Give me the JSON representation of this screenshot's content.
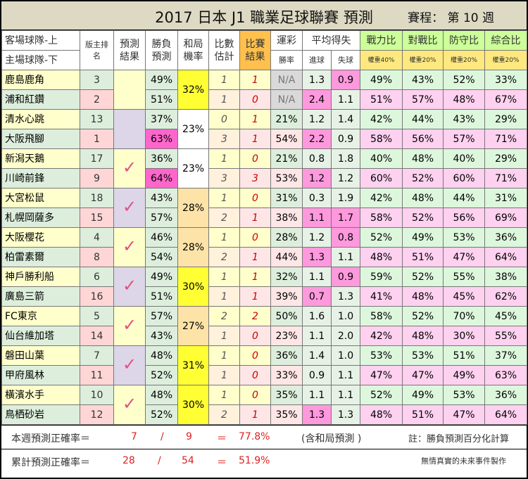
{
  "title": "2017 日本 J1 職業足球聯賽 預測",
  "schedule": "賽程： 第 10 週",
  "headers": {
    "team_top": "客場球隊-上",
    "team_bottom": "主場球隊-下",
    "rank": "版主排名",
    "pred": "預測結果",
    "win": "勝負預測",
    "draw": "和局機率",
    "est": "比數估計",
    "result": "比賽結果",
    "lottery": "運彩",
    "lottery_sub": "勝率",
    "avg": "平均得失",
    "gf": "進球",
    "ga": "失球",
    "power": "戰力比",
    "power_w": "權重40%",
    "vs": "對戰比",
    "vs_w": "權重20%",
    "def": "防守比",
    "def_w": "權重20%",
    "total": "綜合比",
    "total_w": "權重20%"
  },
  "matches": [
    {
      "pred": "",
      "draw": "32%",
      "draw_color": "y",
      "pred_color": "light",
      "away": {
        "team": "鹿島鹿角",
        "rank": "3",
        "win": "49%",
        "est": "1",
        "res": "1",
        "lot": "N/A",
        "gf": "1.3",
        "ga": "0.9",
        "pw": "49%",
        "vs": "43%",
        "df": "52%",
        "tot": "33%"
      },
      "home": {
        "team": "浦和紅鑽",
        "rank": "2",
        "win": "51%",
        "est": "1",
        "res": "0",
        "lot": "N/A",
        "gf": "2.4",
        "ga": "1.1",
        "pw": "51%",
        "vs": "57%",
        "df": "48%",
        "tot": "67%"
      }
    },
    {
      "pred": "",
      "draw": "23%",
      "draw_color": "w",
      "pred_color": "mauve",
      "away": {
        "team": "清水心跳",
        "rank": "13",
        "win": "37%",
        "est": "0",
        "res": "1",
        "lot": "21%",
        "gf": "1.2",
        "ga": "1.4",
        "pw": "42%",
        "vs": "44%",
        "df": "43%",
        "tot": "29%"
      },
      "home": {
        "team": "大阪飛腳",
        "rank": "1",
        "win": "63%",
        "est": "3",
        "res": "1",
        "lot": "54%",
        "gf": "2.2",
        "ga": "0.9",
        "pw": "58%",
        "vs": "56%",
        "df": "57%",
        "tot": "71%"
      }
    },
    {
      "pred": "✓",
      "draw": "23%",
      "draw_color": "w",
      "pred_color": "light",
      "away": {
        "team": "新潟天鵝",
        "rank": "17",
        "win": "36%",
        "est": "1",
        "res": "0",
        "lot": "21%",
        "gf": "0.8",
        "ga": "1.8",
        "pw": "40%",
        "vs": "48%",
        "df": "40%",
        "tot": "29%"
      },
      "home": {
        "team": "川崎前鋒",
        "rank": "9",
        "win": "64%",
        "est": "3",
        "res": "3",
        "lot": "53%",
        "gf": "1.2",
        "ga": "1.2",
        "pw": "60%",
        "vs": "52%",
        "df": "60%",
        "tot": "71%"
      }
    },
    {
      "pred": "✓",
      "draw": "28%",
      "draw_color": "o",
      "pred_color": "mauve",
      "away": {
        "team": "大宮松鼠",
        "rank": "18",
        "win": "43%",
        "est": "1",
        "res": "0",
        "lot": "31%",
        "gf": "0.3",
        "ga": "1.9",
        "pw": "42%",
        "vs": "48%",
        "df": "44%",
        "tot": "31%"
      },
      "home": {
        "team": "札幌岡薩多",
        "rank": "15",
        "win": "57%",
        "est": "2",
        "res": "1",
        "lot": "38%",
        "gf": "1.1",
        "ga": "1.7",
        "pw": "58%",
        "vs": "52%",
        "df": "56%",
        "tot": "69%"
      }
    },
    {
      "pred": "✓",
      "draw": "28%",
      "draw_color": "o",
      "pred_color": "light",
      "away": {
        "team": "大阪櫻花",
        "rank": "4",
        "win": "46%",
        "est": "1",
        "res": "0",
        "lot": "28%",
        "gf": "1.2",
        "ga": "0.8",
        "pw": "52%",
        "vs": "49%",
        "df": "53%",
        "tot": "36%"
      },
      "home": {
        "team": "柏雷素爾",
        "rank": "8",
        "win": "54%",
        "est": "2",
        "res": "1",
        "lot": "44%",
        "gf": "1.3",
        "ga": "1.1",
        "pw": "48%",
        "vs": "51%",
        "df": "47%",
        "tot": "64%"
      }
    },
    {
      "pred": "✓",
      "draw": "30%",
      "draw_color": "y",
      "pred_color": "mauve",
      "away": {
        "team": "神戶勝利船",
        "rank": "6",
        "win": "49%",
        "est": "1",
        "res": "1",
        "lot": "32%",
        "gf": "1.1",
        "ga": "0.9",
        "pw": "59%",
        "vs": "52%",
        "df": "55%",
        "tot": "38%"
      },
      "home": {
        "team": "廣島三箭",
        "rank": "16",
        "win": "51%",
        "est": "1",
        "res": "1",
        "lot": "39%",
        "gf": "0.7",
        "ga": "1.3",
        "pw": "41%",
        "vs": "48%",
        "df": "45%",
        "tot": "62%"
      }
    },
    {
      "pred": "✓",
      "draw": "27%",
      "draw_color": "o",
      "pred_color": "light",
      "away": {
        "team": "FC東京",
        "rank": "5",
        "win": "57%",
        "est": "2",
        "res": "2",
        "lot": "50%",
        "gf": "1.6",
        "ga": "1.0",
        "pw": "58%",
        "vs": "52%",
        "df": "70%",
        "tot": "45%"
      },
      "home": {
        "team": "仙台維加塔",
        "rank": "14",
        "win": "43%",
        "est": "1",
        "res": "0",
        "lot": "23%",
        "gf": "1.1",
        "ga": "2.0",
        "pw": "42%",
        "vs": "48%",
        "df": "30%",
        "tot": "55%"
      }
    },
    {
      "pred": "✓",
      "draw": "31%",
      "draw_color": "y",
      "pred_color": "mauve",
      "away": {
        "team": "磐田山葉",
        "rank": "7",
        "win": "48%",
        "est": "1",
        "res": "0",
        "lot": "36%",
        "gf": "1.4",
        "ga": "1.0",
        "pw": "53%",
        "vs": "53%",
        "df": "51%",
        "tot": "37%"
      },
      "home": {
        "team": "甲府風林",
        "rank": "11",
        "win": "52%",
        "est": "1",
        "res": "0",
        "lot": "33%",
        "gf": "0.9",
        "ga": "1.1",
        "pw": "47%",
        "vs": "47%",
        "df": "49%",
        "tot": "63%"
      }
    },
    {
      "pred": "✓",
      "draw": "30%",
      "draw_color": "y",
      "pred_color": "light",
      "away": {
        "team": "橫濱水手",
        "rank": "10",
        "win": "48%",
        "est": "1",
        "res": "0",
        "lot": "35%",
        "gf": "1.1",
        "ga": "1.1",
        "pw": "52%",
        "vs": "49%",
        "df": "53%",
        "tot": "36%"
      },
      "home": {
        "team": "鳥栖砂岩",
        "rank": "12",
        "win": "52%",
        "est": "2",
        "res": "1",
        "lot": "35%",
        "gf": "1.3",
        "ga": "1.3",
        "pw": "48%",
        "vs": "51%",
        "df": "47%",
        "tot": "64%"
      }
    }
  ],
  "highlights": {
    "win_hi": [
      "1-home",
      "2-home"
    ],
    "ga_pk": [
      "0-away"
    ],
    "gf_pk": [
      "0-home",
      "1-home",
      "2-home",
      "3-home",
      "4-home",
      "5-home",
      "8-home"
    ],
    "ga_pk2": [
      "3-home",
      "4-away",
      "5-away"
    ]
  },
  "footer": {
    "week_label": "本週預測正確率＝",
    "week_correct": "7",
    "week_slash": "/",
    "week_total": "9",
    "week_eq": "＝",
    "week_pct": "77.8%",
    "week_note": "(含和局預測 )",
    "note": "註：勝負預測百分化計算",
    "cum_label": "累計預測正確率＝",
    "cum_correct": "28",
    "cum_slash": "/",
    "cum_total": "54",
    "cum_eq": "＝",
    "cum_pct": "51.9%",
    "credit": "無情真實的未來事件製作"
  }
}
